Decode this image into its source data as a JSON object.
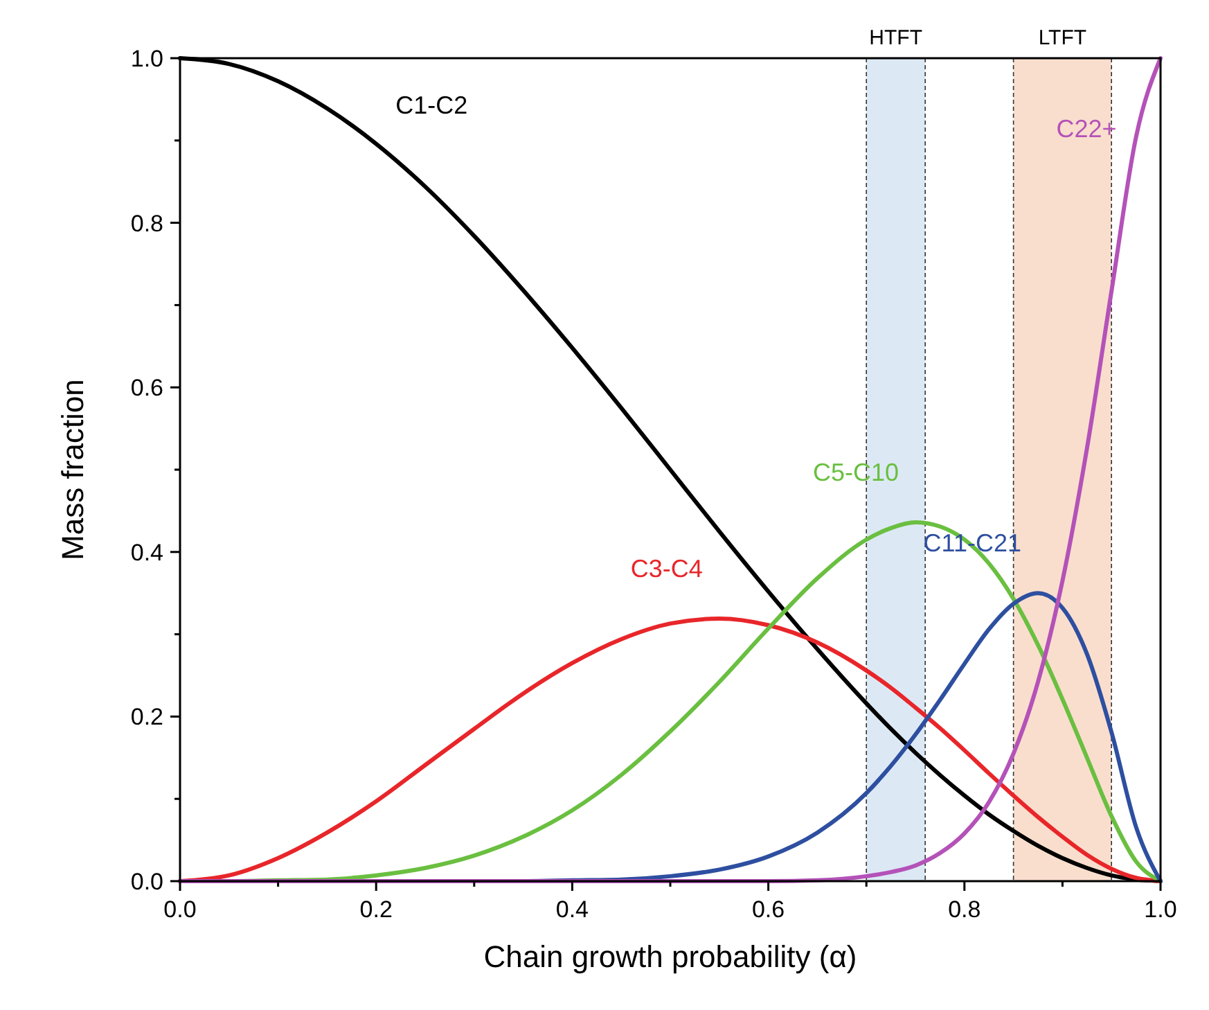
{
  "chart_data": {
    "type": "line",
    "xlabel": "Chain growth probability (α)",
    "ylabel": "Mass fraction",
    "x": [
      0,
      0.05,
      0.1,
      0.15,
      0.2,
      0.25,
      0.3,
      0.35,
      0.4,
      0.45,
      0.5,
      0.55,
      0.6,
      0.65,
      0.7,
      0.725,
      0.75,
      0.775,
      0.8,
      0.825,
      0.85,
      0.875,
      0.9,
      0.925,
      0.95,
      0.975,
      1
    ],
    "series": [
      {
        "name": "C1-C2",
        "color": "#000000",
        "values": [
          1,
          0.993,
          0.972,
          0.939,
          0.896,
          0.844,
          0.784,
          0.718,
          0.648,
          0.575,
          0.5,
          0.425,
          0.352,
          0.282,
          0.216,
          0.185,
          0.156,
          0.129,
          0.104,
          0.081,
          0.061,
          0.043,
          0.028,
          0.016,
          0.007,
          0.002,
          0
        ]
      },
      {
        "name": "C3-C4",
        "color": "#e8262a",
        "values": [
          0,
          0.007,
          0.028,
          0.059,
          0.097,
          0.141,
          0.185,
          0.228,
          0.265,
          0.294,
          0.313,
          0.319,
          0.311,
          0.29,
          0.256,
          0.235,
          0.211,
          0.186,
          0.159,
          0.131,
          0.104,
          0.078,
          0.054,
          0.032,
          0.015,
          0.004,
          0
        ]
      },
      {
        "name": "C5-C10",
        "color": "#6abf40",
        "values": [
          0,
          0,
          0.001,
          0.002,
          0.007,
          0.016,
          0.031,
          0.054,
          0.086,
          0.129,
          0.182,
          0.242,
          0.307,
          0.368,
          0.415,
          0.429,
          0.436,
          0.431,
          0.415,
          0.386,
          0.343,
          0.287,
          0.221,
          0.15,
          0.079,
          0.024,
          0
        ]
      },
      {
        "name": "C11-C21",
        "color": "#2e4fa0",
        "values": [
          null,
          null,
          null,
          null,
          null,
          null,
          0,
          0,
          0.001,
          0.002,
          0.006,
          0.014,
          0.03,
          0.059,
          0.107,
          0.14,
          0.178,
          0.22,
          0.264,
          0.306,
          0.337,
          0.35,
          0.332,
          0.276,
          0.181,
          0.066,
          0
        ]
      },
      {
        "name": "C22+",
        "color": "#b452b8",
        "values": [
          0,
          0,
          0,
          0,
          0,
          0,
          0,
          0,
          0,
          0,
          0,
          0,
          0,
          0.001,
          0.006,
          0.011,
          0.019,
          0.034,
          0.058,
          0.096,
          0.155,
          0.242,
          0.365,
          0.526,
          0.717,
          0.904,
          1
        ]
      }
    ],
    "xlim": [
      0,
      1
    ],
    "ylim": [
      0,
      1
    ],
    "xticks": [
      {
        "value": 0,
        "label": "0.0"
      },
      {
        "value": 0.1,
        "label": null
      },
      0.2,
      {
        "value": 0.3,
        "label": null
      },
      0.4,
      {
        "value": 0.5,
        "label": null
      },
      0.6,
      {
        "value": 0.7,
        "label": null
      },
      0.8,
      {
        "value": 0.9,
        "label": null
      },
      {
        "value": 1,
        "label": "1.0"
      }
    ],
    "yticks": [
      {
        "value": 0,
        "label": "0.0"
      },
      {
        "value": 0.1,
        "label": null
      },
      {
        "value": 0.2,
        "label": "0.2"
      },
      {
        "value": 0.3,
        "label": null
      },
      {
        "value": 0.4,
        "label": "0.4"
      },
      {
        "value": 0.5,
        "label": null
      },
      {
        "value": 0.6,
        "label": "0.6"
      },
      {
        "value": 0.7,
        "label": null
      },
      {
        "value": 0.8,
        "label": "0.8"
      },
      {
        "value": 0.9,
        "label": null
      },
      {
        "value": 1,
        "label": "1.0"
      }
    ],
    "bands": [
      {
        "axis": "x",
        "from": 0.7,
        "to": 0.76,
        "label": "HTFT",
        "color": "#dce9f5"
      },
      {
        "axis": "x",
        "from": 0.85,
        "to": 0.95,
        "label": "LTFT",
        "color": "#f9dece"
      }
    ],
    "marker": "none",
    "line_style": "solid"
  }
}
